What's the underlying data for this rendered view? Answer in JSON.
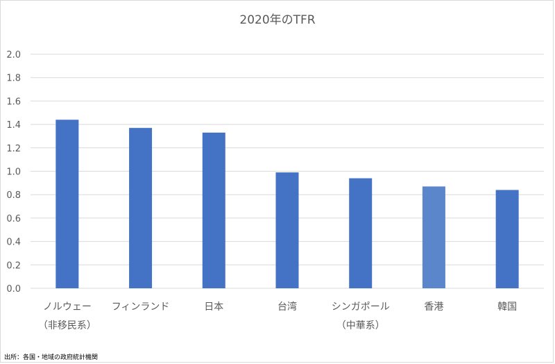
{
  "chart_data": {
    "type": "bar",
    "title": "2020年のTFR",
    "categories": [
      [
        "ノルウェー",
        "（非移民系）"
      ],
      [
        "フィンランド",
        ""
      ],
      [
        "日本",
        ""
      ],
      [
        "台湾",
        ""
      ],
      [
        "シンガポール",
        "（中華系）"
      ],
      [
        "香港",
        ""
      ],
      [
        "韓国",
        ""
      ]
    ],
    "values": [
      1.44,
      1.37,
      1.33,
      0.99,
      0.94,
      0.87,
      0.84
    ],
    "ylim": [
      0,
      2.0
    ],
    "yticks": [
      "0.0",
      "0.2",
      "0.4",
      "0.6",
      "0.8",
      "1.0",
      "1.2",
      "1.4",
      "1.6",
      "1.8",
      "2.0"
    ],
    "xlabel": "",
    "ylabel": "",
    "grid": true,
    "bar_color": "#4472C4",
    "bar_color_light": "#5B86CC"
  },
  "source": "出所：各国・地域の政府統計機関"
}
